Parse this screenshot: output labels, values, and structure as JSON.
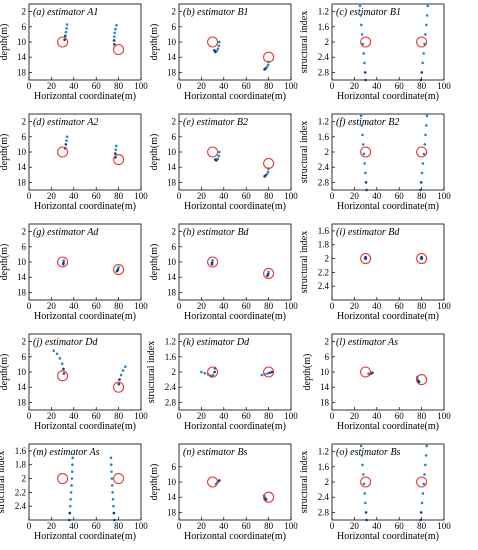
{
  "figure": {
    "x_tick_labels": [
      "0",
      "20",
      "40",
      "60",
      "80",
      "100"
    ],
    "xlabel": "Horizontal coordinate(m)",
    "ylabel_depth": "depth(m)",
    "ylabel_si": "structural index"
  },
  "chart_data": [
    {
      "type": "scatter",
      "title": "(a) estimator A1",
      "ylabel": "depth(m)",
      "xlim": [
        0,
        100
      ],
      "ylim": [
        20,
        0
      ],
      "y_ticks": [
        "2",
        "6",
        "10",
        "14",
        "18"
      ],
      "true_sources": [
        {
          "x": 30,
          "y": 10
        },
        {
          "x": 80,
          "y": 12
        }
      ],
      "trails": [
        [
          [
            34,
            5.4
          ],
          [
            33.6,
            6.4
          ],
          [
            33,
            7.4
          ],
          [
            32.4,
            8.4
          ],
          [
            31.8,
            9.4
          ]
        ],
        [
          [
            78,
            5.6
          ],
          [
            77.2,
            6.6
          ],
          [
            76.6,
            7.6
          ],
          [
            76.2,
            8.6
          ],
          [
            76,
            9.6
          ],
          [
            76.2,
            10.6
          ]
        ]
      ]
    },
    {
      "type": "scatter",
      "title": "(b) estimator B1",
      "ylabel": "depth(m)",
      "xlim": [
        0,
        100
      ],
      "ylim": [
        20,
        0
      ],
      "y_ticks": [
        "2",
        "6",
        "10",
        "14",
        "18"
      ],
      "true_sources": [
        {
          "x": 30,
          "y": 10
        },
        {
          "x": 80,
          "y": 14
        }
      ],
      "trails": [
        [
          [
            36,
            10
          ],
          [
            35.6,
            11
          ],
          [
            34.8,
            11.8
          ],
          [
            33.6,
            12.4
          ],
          [
            32.4,
            12.6
          ],
          [
            31.6,
            12.2
          ]
        ],
        [
          [
            80,
            15.2
          ],
          [
            79.6,
            16
          ],
          [
            78.6,
            16.6
          ],
          [
            77.2,
            17
          ],
          [
            76.4,
            17.2
          ]
        ]
      ]
    },
    {
      "type": "scatter",
      "title": "(c) estimator B1",
      "ylabel": "structural index",
      "xlim": [
        0,
        100
      ],
      "ylim": [
        3.0,
        1.0
      ],
      "y_ticks": [
        "1.2",
        "1.6",
        "2",
        "2.4",
        "2.8"
      ],
      "true_sources": [
        {
          "x": 30,
          "y": 2.0
        },
        {
          "x": 80,
          "y": 2.0
        }
      ],
      "trails": [
        [
          [
            25,
            1.05
          ],
          [
            25.6,
            1.3
          ],
          [
            26.2,
            1.55
          ],
          [
            26.9,
            1.8
          ],
          [
            27.6,
            2.05
          ],
          [
            28.3,
            2.3
          ],
          [
            29,
            2.55
          ],
          [
            29.6,
            2.8
          ],
          [
            30.1,
            3.0
          ]
        ],
        [
          [
            85.5,
            1.05
          ],
          [
            84.9,
            1.3
          ],
          [
            84.2,
            1.55
          ],
          [
            83.4,
            1.8
          ],
          [
            82.6,
            2.05
          ],
          [
            81.8,
            2.3
          ],
          [
            81,
            2.55
          ],
          [
            80.2,
            2.8
          ],
          [
            79.5,
            3.0
          ]
        ]
      ]
    },
    {
      "type": "scatter",
      "title": "(d) estimator A2",
      "ylabel": "depth(m)",
      "xlim": [
        0,
        100
      ],
      "ylim": [
        20,
        0
      ],
      "y_ticks": [
        "2",
        "6",
        "10",
        "14",
        "18"
      ],
      "true_sources": [
        {
          "x": 30,
          "y": 10
        },
        {
          "x": 80,
          "y": 12
        }
      ],
      "trails": [
        [
          [
            34,
            6
          ],
          [
            33.5,
            7
          ],
          [
            32.9,
            8
          ],
          [
            32.3,
            9
          ]
        ],
        [
          [
            78,
            8.4
          ],
          [
            77.4,
            9.4
          ],
          [
            77,
            10.4
          ],
          [
            77.2,
            11.4
          ]
        ]
      ]
    },
    {
      "type": "scatter",
      "title": "(e) estimator B2",
      "ylabel": "depth(m)",
      "xlim": [
        0,
        100
      ],
      "ylim": [
        20,
        0
      ],
      "y_ticks": [
        "2",
        "6",
        "10",
        "14",
        "18"
      ],
      "true_sources": [
        {
          "x": 30,
          "y": 10
        },
        {
          "x": 80,
          "y": 13
        }
      ],
      "trails": [
        [
          [
            36,
            10
          ],
          [
            35.5,
            11
          ],
          [
            34.6,
            11.8
          ],
          [
            33.4,
            12.2
          ],
          [
            32.4,
            12
          ]
        ],
        [
          [
            80,
            14.4
          ],
          [
            79.6,
            15.2
          ],
          [
            78.6,
            15.8
          ],
          [
            77.2,
            16.2
          ],
          [
            76.4,
            16.4
          ]
        ]
      ]
    },
    {
      "type": "scatter",
      "title": "(f) estimator B2",
      "ylabel": "structural index",
      "xlim": [
        0,
        100
      ],
      "ylim": [
        3.0,
        1.0
      ],
      "y_ticks": [
        "1.2",
        "1.6",
        "2",
        "2.4",
        "2.8"
      ],
      "true_sources": [
        {
          "x": 30,
          "y": 2.0
        },
        {
          "x": 80,
          "y": 2.0
        }
      ],
      "trails": [
        [
          [
            26,
            1.05
          ],
          [
            26.6,
            1.3
          ],
          [
            27.2,
            1.55
          ],
          [
            27.9,
            1.8
          ],
          [
            28.5,
            2.05
          ],
          [
            29.2,
            2.3
          ],
          [
            29.8,
            2.55
          ],
          [
            30.4,
            2.8
          ],
          [
            30.9,
            3.0
          ]
        ],
        [
          [
            84.8,
            1.05
          ],
          [
            84.2,
            1.3
          ],
          [
            83.5,
            1.55
          ],
          [
            82.8,
            1.8
          ],
          [
            82,
            2.05
          ],
          [
            81.2,
            2.3
          ],
          [
            80.4,
            2.55
          ],
          [
            79.6,
            2.8
          ],
          [
            79,
            3.0
          ]
        ]
      ]
    },
    {
      "type": "scatter",
      "title": "(g) estimator Ad",
      "ylabel": "depth(m)",
      "xlim": [
        0,
        100
      ],
      "ylim": [
        20,
        0
      ],
      "y_ticks": [
        "2",
        "6",
        "10",
        "14",
        "18"
      ],
      "true_sources": [
        {
          "x": 30,
          "y": 10
        },
        {
          "x": 80,
          "y": 12
        }
      ],
      "trails": [
        [
          [
            31,
            9.6
          ],
          [
            30.8,
            10.2
          ],
          [
            30.6,
            10.6
          ]
        ],
        [
          [
            80,
            11.4
          ],
          [
            79.4,
            12
          ],
          [
            78.6,
            12.4
          ]
        ]
      ]
    },
    {
      "type": "scatter",
      "title": "(h) estimator Bd",
      "ylabel": "depth(m)",
      "xlim": [
        0,
        100
      ],
      "ylim": [
        20,
        0
      ],
      "y_ticks": [
        "2",
        "6",
        "10",
        "14",
        "18"
      ],
      "true_sources": [
        {
          "x": 30,
          "y": 10
        },
        {
          "x": 80,
          "y": 13
        }
      ],
      "trails": [
        [
          [
            30,
            9.6
          ],
          [
            29.6,
            10.2
          ],
          [
            29.4,
            10.6
          ]
        ],
        [
          [
            80,
            12.6
          ],
          [
            79.6,
            13.2
          ],
          [
            79,
            13.6
          ]
        ]
      ]
    },
    {
      "type": "scatter",
      "title": "(i) estimator Bd",
      "ylabel": "structural index",
      "xlim": [
        0,
        100
      ],
      "ylim": [
        2.6,
        1.5
      ],
      "y_ticks": [
        "1.6",
        "1.8",
        "2",
        "2.2",
        "2.4"
      ],
      "true_sources": [
        {
          "x": 30,
          "y": 2.0
        },
        {
          "x": 80,
          "y": 2.0
        }
      ],
      "trails": [
        [
          [
            29.4,
            2.0
          ],
          [
            30.2,
            2.0
          ],
          [
            30,
            1.98
          ]
        ],
        [
          [
            79.4,
            2.0
          ],
          [
            80.2,
            2.0
          ],
          [
            80,
            1.98
          ]
        ]
      ]
    },
    {
      "type": "scatter",
      "title": "(j) estimator Dd",
      "ylabel": "depth(m)",
      "xlim": [
        0,
        100
      ],
      "ylim": [
        20,
        0
      ],
      "y_ticks": [
        "2",
        "6",
        "10",
        "14",
        "18"
      ],
      "true_sources": [
        {
          "x": 30,
          "y": 11
        },
        {
          "x": 80,
          "y": 14
        }
      ],
      "trails": [
        [
          [
            22,
            4.4
          ],
          [
            25,
            5.2
          ],
          [
            27.6,
            6.4
          ],
          [
            29.6,
            7.8
          ],
          [
            30.8,
            9.2
          ],
          [
            31.2,
            10.4
          ]
        ],
        [
          [
            86,
            8.6
          ],
          [
            84,
            9.6
          ],
          [
            82.2,
            10.8
          ],
          [
            80.8,
            12
          ],
          [
            80.2,
            13.2
          ]
        ]
      ]
    },
    {
      "type": "scatter",
      "title": "(k) estimator Dd",
      "ylabel": "structural index",
      "xlim": [
        0,
        100
      ],
      "ylim": [
        3.0,
        1.0
      ],
      "y_ticks": [
        "1.2",
        "1.6",
        "2",
        "2.4",
        "2.8"
      ],
      "true_sources": [
        {
          "x": 30,
          "y": 2.0
        },
        {
          "x": 80,
          "y": 2.0
        }
      ],
      "trails": [
        [
          [
            20,
            2.0
          ],
          [
            23,
            2.03
          ],
          [
            26,
            2.06
          ],
          [
            28,
            2.1
          ],
          [
            29.4,
            2.12
          ],
          [
            30.4,
            2.08
          ],
          [
            31.8,
            2.0
          ],
          [
            32.2,
            1.9
          ]
        ],
        [
          [
            74,
            2.08
          ],
          [
            76.5,
            2.06
          ],
          [
            79,
            2.04
          ],
          [
            81,
            2.02
          ],
          [
            83,
            2.0
          ]
        ]
      ]
    },
    {
      "type": "scatter",
      "title": "(l) estimator As",
      "ylabel": "depth(m)",
      "xlim": [
        0,
        100
      ],
      "ylim": [
        20,
        0
      ],
      "y_ticks": [
        "2",
        "6",
        "10",
        "14",
        "18"
      ],
      "true_sources": [
        {
          "x": 30,
          "y": 10
        },
        {
          "x": 80,
          "y": 12
        }
      ],
      "trails": [
        [
          [
            32.6,
            10.4
          ],
          [
            33.6,
            10.6
          ],
          [
            34.8,
            10.4
          ],
          [
            36,
            10.2
          ]
        ],
        [
          [
            76,
            11.4
          ],
          [
            76.4,
            12
          ],
          [
            77,
            12.4
          ],
          [
            77.8,
            12.6
          ]
        ]
      ]
    },
    {
      "type": "scatter",
      "title": "(m) estimator As",
      "ylabel": "structural index",
      "xlim": [
        0,
        100
      ],
      "ylim": [
        2.6,
        1.5
      ],
      "y_ticks": [
        "1.6",
        "1.8",
        "2",
        "2.2",
        "2.4"
      ],
      "true_sources": [
        {
          "x": 30,
          "y": 2.0
        },
        {
          "x": 80,
          "y": 2.0
        }
      ],
      "trails": [
        [
          [
            39,
            1.7
          ],
          [
            38.8,
            1.8
          ],
          [
            38.6,
            1.9
          ],
          [
            38.3,
            2.0
          ],
          [
            38,
            2.1
          ],
          [
            37.6,
            2.2
          ],
          [
            37.2,
            2.3
          ],
          [
            36.8,
            2.4
          ],
          [
            36.4,
            2.5
          ],
          [
            36,
            2.6
          ]
        ],
        [
          [
            73.2,
            1.7
          ],
          [
            73.4,
            1.8
          ],
          [
            73.7,
            1.9
          ],
          [
            74,
            2.0
          ],
          [
            74.3,
            2.1
          ],
          [
            74.6,
            2.2
          ],
          [
            75,
            2.3
          ],
          [
            75.4,
            2.4
          ],
          [
            75.8,
            2.5
          ],
          [
            76.2,
            2.6
          ]
        ]
      ]
    },
    {
      "type": "scatter",
      "title": "(n) estimator Bs",
      "ylabel": "depth(m)",
      "xlim": [
        0,
        100
      ],
      "ylim": [
        20,
        0
      ],
      "y_ticks": [
        "6",
        "10",
        "14",
        "18"
      ],
      "true_sources": [
        {
          "x": 30,
          "y": 10
        },
        {
          "x": 80,
          "y": 14
        }
      ],
      "trails": [
        [
          [
            33,
            10.6
          ],
          [
            34,
            10.2
          ],
          [
            35,
            9.8
          ],
          [
            36,
            9.6
          ]
        ],
        [
          [
            76,
            13.6
          ],
          [
            76.4,
            14
          ],
          [
            77,
            14.4
          ],
          [
            77.8,
            14.6
          ]
        ]
      ]
    },
    {
      "type": "scatter",
      "title": "(o) estimator Bs",
      "ylabel": "structural index",
      "xlim": [
        0,
        100
      ],
      "ylim": [
        3.0,
        1.0
      ],
      "y_ticks": [
        "1.2",
        "1.6",
        "2",
        "2.4",
        "2.8"
      ],
      "true_sources": [
        {
          "x": 30,
          "y": 2.0
        },
        {
          "x": 80,
          "y": 2.0
        }
      ],
      "trails": [
        [
          [
            26,
            1.05
          ],
          [
            26.6,
            1.3
          ],
          [
            27.2,
            1.55
          ],
          [
            27.9,
            1.8
          ],
          [
            28.5,
            2.05
          ],
          [
            29.2,
            2.3
          ],
          [
            29.8,
            2.55
          ],
          [
            30.4,
            2.8
          ],
          [
            30.9,
            3.0
          ]
        ],
        [
          [
            84.6,
            1.05
          ],
          [
            84,
            1.3
          ],
          [
            83.3,
            1.55
          ],
          [
            82.6,
            1.8
          ],
          [
            81.9,
            2.05
          ],
          [
            81.2,
            2.3
          ],
          [
            80.4,
            2.55
          ],
          [
            79.6,
            2.8
          ],
          [
            79,
            3.0
          ]
        ]
      ]
    }
  ],
  "colors": {
    "trail": "#1e88c8",
    "trail_dark": "#0b3f80",
    "true_source": "#e53935",
    "axis": "#000000"
  }
}
